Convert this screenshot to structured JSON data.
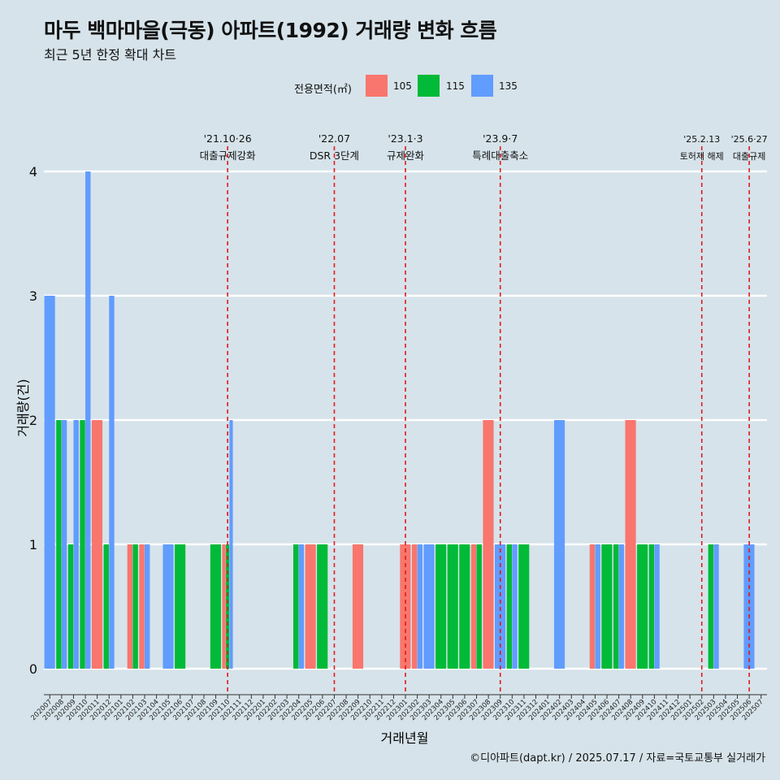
{
  "title": "마두 백마마을(극동) 아파트(1992) 거래량 변화 흐름",
  "subtitle": "최근 5년 한정 확대 차트",
  "caption": "©디아파트(dapt.kr) / 2025.07.17 / 자료=국토교통부 실거래가",
  "legend": {
    "title": "전용면적(㎡)",
    "items": [
      {
        "label": "105",
        "color": "#f8766d"
      },
      {
        "label": "115",
        "color": "#00ba38"
      },
      {
        "label": "135",
        "color": "#619cff"
      }
    ]
  },
  "chart_data": {
    "type": "bar",
    "xlabel": "거래년월",
    "ylabel": "거래량(건)",
    "ylim": [
      0,
      4
    ],
    "yticks": [
      0,
      1,
      2,
      3,
      4
    ],
    "grid": true,
    "categories": [
      "202007",
      "202008",
      "202009",
      "202010",
      "202011",
      "202012",
      "202101",
      "202102",
      "202103",
      "202104",
      "202105",
      "202106",
      "202107",
      "202108",
      "202109",
      "202110",
      "202111",
      "202112",
      "202201",
      "202202",
      "202203",
      "202204",
      "202205",
      "202206",
      "202207",
      "202208",
      "202209",
      "202210",
      "202211",
      "202212",
      "202301",
      "202302",
      "202303",
      "202304",
      "202305",
      "202306",
      "202307",
      "202308",
      "202309",
      "202310",
      "202311",
      "202312",
      "202401",
      "202402",
      "202403",
      "202404",
      "202405",
      "202406",
      "202407",
      "202408",
      "202409",
      "202410",
      "202411",
      "202412",
      "202501",
      "202502",
      "202503",
      "202504",
      "202505",
      "202506",
      "202507"
    ],
    "series": [
      {
        "name": "105",
        "color": "#f8766d",
        "values": [
          0,
          0,
          0,
          0,
          2,
          0,
          0,
          1,
          1,
          0,
          0,
          0,
          0,
          0,
          0,
          1,
          0,
          0,
          0,
          0,
          0,
          0,
          1,
          0,
          0,
          0,
          1,
          0,
          0,
          0,
          1,
          1,
          0,
          0,
          0,
          0,
          1,
          2,
          0,
          0,
          0,
          0,
          0,
          0,
          0,
          0,
          1,
          0,
          0,
          2,
          0,
          0,
          0,
          0,
          0,
          0,
          0,
          0,
          0,
          0,
          0
        ]
      },
      {
        "name": "115",
        "color": "#00ba38",
        "values": [
          0,
          2,
          1,
          2,
          0,
          1,
          0,
          1,
          0,
          0,
          0,
          1,
          0,
          0,
          1,
          1,
          0,
          0,
          0,
          0,
          0,
          1,
          0,
          1,
          0,
          0,
          0,
          0,
          0,
          0,
          0,
          0,
          0,
          1,
          1,
          1,
          1,
          0,
          0,
          1,
          1,
          0,
          0,
          0,
          0,
          0,
          0,
          1,
          1,
          0,
          1,
          1,
          0,
          0,
          0,
          0,
          1,
          0,
          0,
          0,
          0
        ]
      },
      {
        "name": "135",
        "color": "#619cff",
        "values": [
          3,
          2,
          2,
          4,
          0,
          3,
          0,
          0,
          1,
          0,
          1,
          0,
          0,
          0,
          0,
          2,
          0,
          0,
          0,
          0,
          0,
          1,
          0,
          0,
          0,
          0,
          0,
          0,
          0,
          0,
          0,
          1,
          1,
          0,
          0,
          0,
          0,
          0,
          1,
          1,
          0,
          0,
          0,
          2,
          0,
          0,
          1,
          0,
          1,
          0,
          0,
          1,
          0,
          0,
          0,
          0,
          1,
          0,
          0,
          1,
          0
        ]
      }
    ],
    "annotations": [
      {
        "at": "202110",
        "date": "'21.10·26",
        "text": "대출규제강화"
      },
      {
        "at": "202207",
        "date": "'22.07",
        "text": "DSR 3단계"
      },
      {
        "at": "202301",
        "date": "'23.1·3",
        "text": "규제완화"
      },
      {
        "at": "202309",
        "date": "'23.9·7",
        "text": "특례대출축소"
      },
      {
        "at": "202502",
        "date": "'25.2.13",
        "text": "토허제 해제"
      },
      {
        "at": "202506",
        "date": "'25.6·27",
        "text": "대출규제"
      }
    ]
  }
}
